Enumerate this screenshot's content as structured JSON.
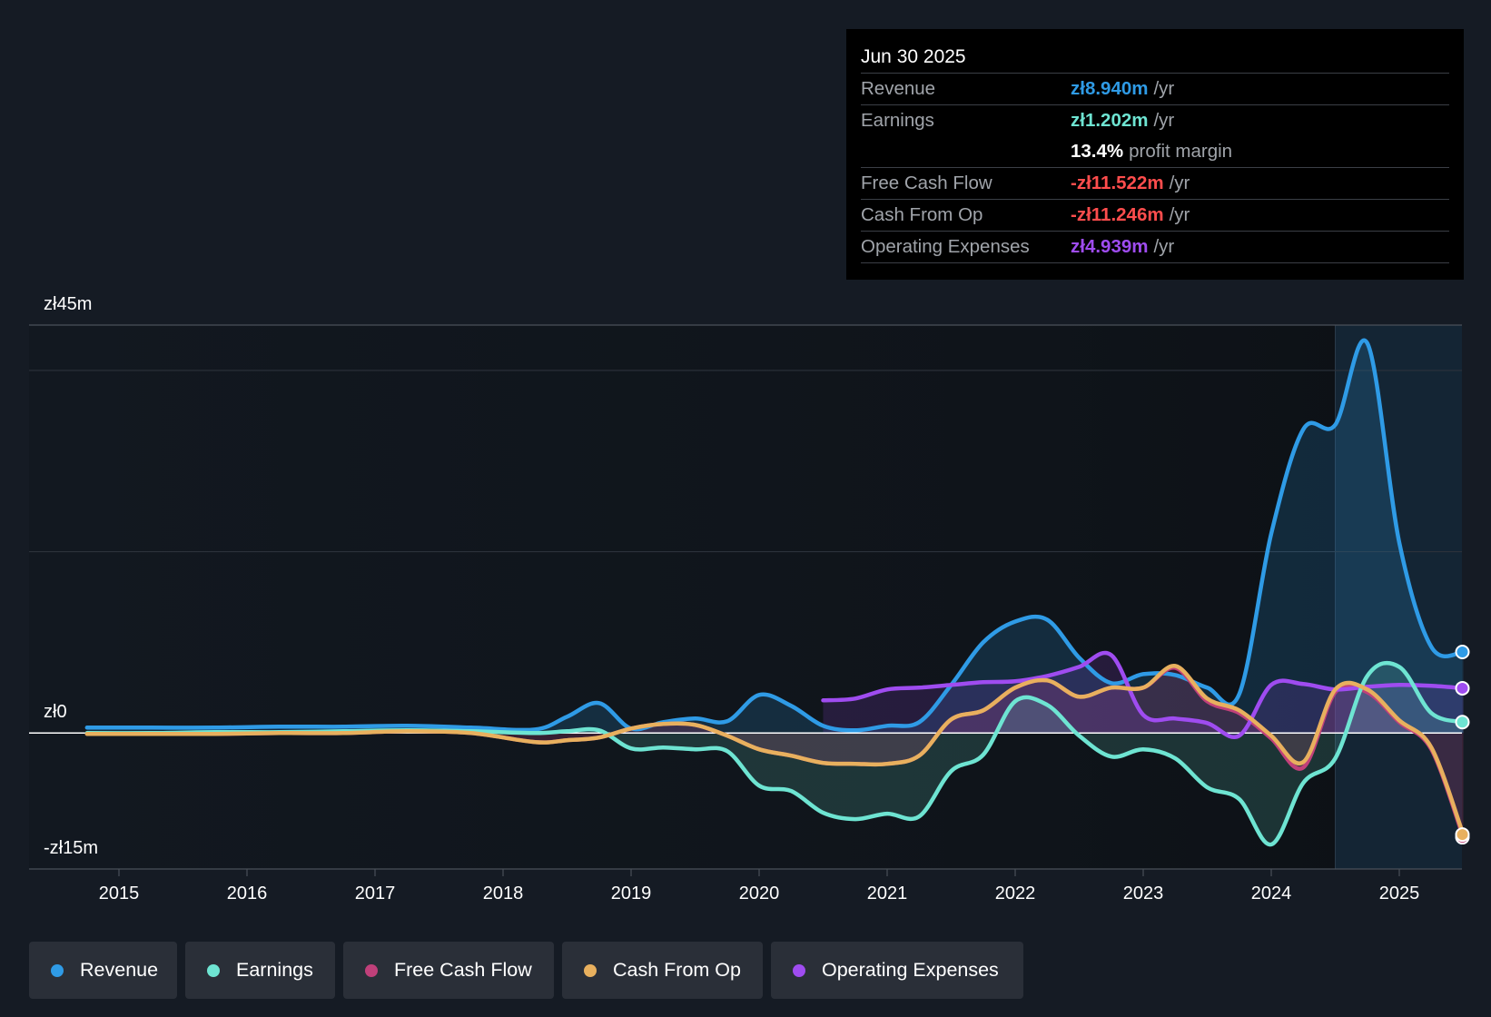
{
  "tooltip": {
    "date": "Jun 30 2025",
    "revenue_label": "Revenue",
    "revenue_value": "zł8.940m",
    "revenue_unit": "/yr",
    "earnings_label": "Earnings",
    "earnings_value": "zł1.202m",
    "earnings_unit": "/yr",
    "margin_value": "13.4%",
    "margin_label": "profit margin",
    "fcf_label": "Free Cash Flow",
    "fcf_value": "-zł11.522m",
    "fcf_unit": "/yr",
    "cfo_label": "Cash From Op",
    "cfo_value": "-zł11.246m",
    "cfo_unit": "/yr",
    "opex_label": "Operating Expenses",
    "opex_value": "zł4.939m",
    "opex_unit": "/yr"
  },
  "legend": {
    "revenue": "Revenue",
    "earnings": "Earnings",
    "fcf": "Free Cash Flow",
    "cfo": "Cash From Op",
    "opex": "Operating Expenses"
  },
  "colors": {
    "revenue": "#2f9be6",
    "earnings": "#6ee4d2",
    "fcf": "#c0407a",
    "cfo": "#e8b05e",
    "opex": "#9f4cf0",
    "negative": "#ff4d4d",
    "background": "#151b24"
  },
  "chart_data": {
    "type": "line",
    "title": "",
    "xlabel": "",
    "ylabel": "",
    "ylim": [
      -15,
      45
    ],
    "y_tick_labels": [
      "zł45m",
      "zł0",
      "-zł15m"
    ],
    "x_tick_labels": [
      "2015",
      "2016",
      "2017",
      "2018",
      "2019",
      "2020",
      "2021",
      "2022",
      "2023",
      "2024",
      "2025"
    ],
    "x_range": [
      2014.3,
      2025.5
    ],
    "forecast_shade_start": 2024.5,
    "series": [
      {
        "name": "Revenue",
        "key": "revenue",
        "fill": true,
        "x": [
          2014.75,
          2015.25,
          2015.75,
          2016.25,
          2016.75,
          2017.25,
          2017.75,
          2018.25,
          2018.5,
          2018.75,
          2019.0,
          2019.25,
          2019.5,
          2019.75,
          2020.0,
          2020.25,
          2020.5,
          2020.75,
          2021.0,
          2021.25,
          2021.5,
          2021.75,
          2022.0,
          2022.25,
          2022.5,
          2022.75,
          2023.0,
          2023.25,
          2023.5,
          2023.75,
          2024.0,
          2024.25,
          2024.5,
          2024.75,
          2025.0,
          2025.25,
          2025.5
        ],
        "y": [
          0.6,
          0.6,
          0.6,
          0.7,
          0.7,
          0.8,
          0.6,
          0.4,
          1.8,
          3.3,
          0.5,
          1.2,
          1.6,
          1.3,
          4.2,
          3.0,
          0.8,
          0.3,
          0.8,
          1.2,
          5.3,
          10.0,
          12.3,
          12.5,
          8.3,
          5.5,
          6.5,
          6.4,
          5.0,
          4.3,
          22.0,
          33.5,
          34.0,
          43.0,
          21.0,
          9.5,
          8.94
        ]
      },
      {
        "name": "Earnings",
        "key": "earnings",
        "fill": true,
        "x": [
          2014.75,
          2015.25,
          2015.75,
          2016.25,
          2016.75,
          2017.25,
          2017.75,
          2018.25,
          2018.5,
          2018.75,
          2019.0,
          2019.25,
          2019.5,
          2019.75,
          2020.0,
          2020.25,
          2020.5,
          2020.75,
          2021.0,
          2021.25,
          2021.5,
          2021.75,
          2022.0,
          2022.25,
          2022.5,
          2022.75,
          2023.0,
          2023.25,
          2023.5,
          2023.75,
          2024.0,
          2024.25,
          2024.5,
          2024.75,
          2025.0,
          2025.25,
          2025.5
        ],
        "y": [
          0.0,
          0.0,
          0.1,
          0.1,
          0.2,
          0.3,
          0.2,
          0.0,
          0.2,
          0.3,
          -1.7,
          -1.6,
          -1.8,
          -2.0,
          -5.8,
          -6.4,
          -8.8,
          -9.5,
          -8.9,
          -9.2,
          -4.2,
          -2.4,
          3.5,
          3.1,
          -0.3,
          -2.6,
          -1.8,
          -2.8,
          -6.0,
          -7.3,
          -12.3,
          -5.5,
          -2.8,
          6.3,
          7.3,
          2.2,
          1.2
        ]
      },
      {
        "name": "Free Cash Flow",
        "key": "fcf",
        "fill": true,
        "x": [
          2014.75,
          2015.25,
          2015.75,
          2016.25,
          2016.75,
          2017.25,
          2017.75,
          2018.25,
          2018.5,
          2018.75,
          2019.0,
          2019.25,
          2019.5,
          2019.75,
          2020.0,
          2020.25,
          2020.5,
          2020.75,
          2021.0,
          2021.25,
          2021.5,
          2021.75,
          2022.0,
          2022.25,
          2022.5,
          2022.75,
          2023.0,
          2023.25,
          2023.5,
          2023.75,
          2024.0,
          2024.25,
          2024.5,
          2024.75,
          2025.0,
          2025.25,
          2025.5
        ],
        "y": [
          -0.1,
          -0.1,
          -0.1,
          0.0,
          0.0,
          0.2,
          0.0,
          -1.0,
          -0.8,
          -0.5,
          0.5,
          1.0,
          0.9,
          -0.3,
          -1.8,
          -2.5,
          -3.3,
          -3.4,
          -3.4,
          -2.5,
          1.5,
          2.5,
          5.0,
          5.8,
          4.0,
          5.0,
          5.0,
          7.2,
          3.5,
          2.2,
          -0.6,
          -3.8,
          4.5,
          4.5,
          1.2,
          -1.8,
          -11.5
        ]
      },
      {
        "name": "Cash From Op",
        "key": "cfo",
        "fill": false,
        "x": [
          2014.75,
          2015.25,
          2015.75,
          2016.25,
          2016.75,
          2017.25,
          2017.75,
          2018.25,
          2018.5,
          2018.75,
          2019.0,
          2019.25,
          2019.5,
          2019.75,
          2020.0,
          2020.25,
          2020.5,
          2020.75,
          2021.0,
          2021.25,
          2021.5,
          2021.75,
          2022.0,
          2022.25,
          2022.5,
          2022.75,
          2023.0,
          2023.25,
          2023.5,
          2023.75,
          2024.0,
          2024.25,
          2024.5,
          2024.75,
          2025.0,
          2025.25,
          2025.5
        ],
        "y": [
          -0.1,
          -0.1,
          -0.1,
          0.0,
          0.0,
          0.2,
          0.0,
          -1.0,
          -0.8,
          -0.5,
          0.5,
          1.0,
          0.9,
          -0.3,
          -1.8,
          -2.5,
          -3.3,
          -3.4,
          -3.4,
          -2.5,
          1.5,
          2.5,
          5.0,
          5.8,
          4.0,
          5.0,
          5.0,
          7.4,
          3.8,
          2.5,
          -0.3,
          -3.2,
          4.8,
          4.8,
          1.4,
          -1.6,
          -11.2
        ]
      },
      {
        "name": "Operating Expenses",
        "key": "opex",
        "fill": true,
        "x": [
          2020.5,
          2020.75,
          2021.0,
          2021.25,
          2021.5,
          2021.75,
          2022.0,
          2022.25,
          2022.5,
          2022.75,
          2023.0,
          2023.25,
          2023.5,
          2023.75,
          2024.0,
          2024.25,
          2024.5,
          2024.75,
          2025.0,
          2025.25,
          2025.5
        ],
        "y": [
          3.6,
          3.8,
          4.8,
          5.0,
          5.3,
          5.6,
          5.7,
          6.3,
          7.3,
          8.6,
          2.0,
          1.6,
          1.1,
          -0.3,
          5.3,
          5.4,
          4.8,
          5.1,
          5.3,
          5.2,
          4.939
        ]
      }
    ]
  }
}
